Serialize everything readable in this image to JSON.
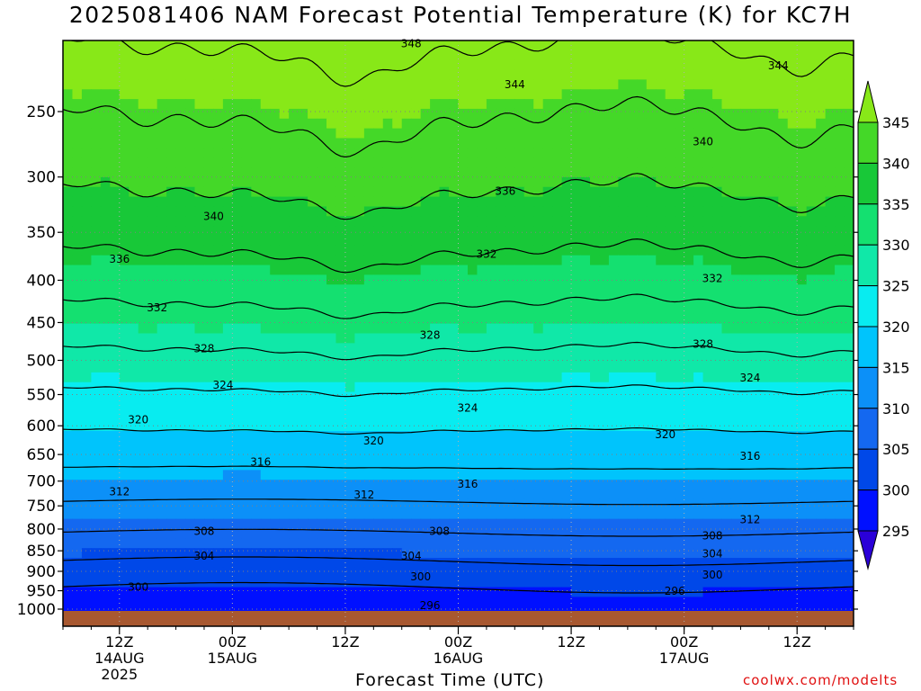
{
  "title": "2025081406 NAM Forecast Potential Temperature (K) for KC7H",
  "xlabel": "Forecast Time (UTC)",
  "credit": "coolwx.com/modelts",
  "colors": {
    "bands": [
      "#2a00d8",
      "#0010ff",
      "#0048e8",
      "#1468f0",
      "#0c90f8",
      "#00c4fc",
      "#08ecf0",
      "#10e8a8",
      "#14e070",
      "#18c838",
      "#44d828",
      "#88e818",
      "#bef000",
      "#ffff00"
    ],
    "ground": "#a85830",
    "grid": "#808080",
    "credit": "#e01010"
  },
  "chart_data": {
    "type": "heatmap",
    "variable": "Potential Temperature (K)",
    "y_axis": {
      "scale": "log-pressure",
      "direction": "inverted",
      "ticks": [
        250,
        300,
        350,
        400,
        450,
        500,
        550,
        600,
        650,
        700,
        750,
        800,
        850,
        900,
        950,
        1000
      ]
    },
    "x_axis": {
      "ticks": [
        {
          "hour": 6,
          "line1": "12Z",
          "line2": "14AUG",
          "line3": "2025"
        },
        {
          "hour": 18,
          "line1": "00Z",
          "line2": "15AUG",
          "line3": ""
        },
        {
          "hour": 30,
          "line1": "12Z",
          "line2": "",
          "line3": ""
        },
        {
          "hour": 42,
          "line1": "00Z",
          "line2": "16AUG",
          "line3": ""
        },
        {
          "hour": 54,
          "line1": "12Z",
          "line2": "",
          "line3": ""
        },
        {
          "hour": 66,
          "line1": "00Z",
          "line2": "17AUG",
          "line3": ""
        },
        {
          "hour": 78,
          "line1": "12Z",
          "line2": "",
          "line3": ""
        }
      ]
    },
    "colorbar": {
      "levels": [
        295,
        300,
        305,
        310,
        315,
        320,
        325,
        330,
        335,
        340,
        345
      ],
      "extend": "both"
    },
    "profile": {
      "pressure": [
        1000,
        950,
        900,
        850,
        800,
        750,
        700,
        650,
        600,
        550,
        500,
        450,
        400,
        350,
        300,
        250,
        200
      ],
      "theta": [
        297.0,
        299.5,
        302.5,
        305.5,
        308.5,
        311.5,
        314.5,
        317.5,
        320.5,
        323.5,
        327.0,
        330.5,
        334.0,
        337.5,
        341.0,
        344.5,
        349.0
      ]
    },
    "contours": [
      296,
      300,
      304,
      308,
      312,
      316,
      320,
      324,
      328,
      332,
      336,
      340,
      344,
      348
    ],
    "contour_labels": [
      {
        "text": "348",
        "hour": 37,
        "p": 207
      },
      {
        "text": "344",
        "hour": 48,
        "p": 232
      },
      {
        "text": "344",
        "hour": 76,
        "p": 220
      },
      {
        "text": "340",
        "hour": 68,
        "p": 272
      },
      {
        "text": "340",
        "hour": 16,
        "p": 335
      },
      {
        "text": "336",
        "hour": 47,
        "p": 312
      },
      {
        "text": "336",
        "hour": 6,
        "p": 377
      },
      {
        "text": "332",
        "hour": 45,
        "p": 372
      },
      {
        "text": "332",
        "hour": 69,
        "p": 398
      },
      {
        "text": "332",
        "hour": 10,
        "p": 432
      },
      {
        "text": "328",
        "hour": 39,
        "p": 466
      },
      {
        "text": "328",
        "hour": 68,
        "p": 478
      },
      {
        "text": "328",
        "hour": 15,
        "p": 484
      },
      {
        "text": "324",
        "hour": 17,
        "p": 536
      },
      {
        "text": "324",
        "hour": 73,
        "p": 525
      },
      {
        "text": "324",
        "hour": 43,
        "p": 571
      },
      {
        "text": "320",
        "hour": 8,
        "p": 590
      },
      {
        "text": "320",
        "hour": 33,
        "p": 626
      },
      {
        "text": "320",
        "hour": 64,
        "p": 615
      },
      {
        "text": "316",
        "hour": 21,
        "p": 664
      },
      {
        "text": "316",
        "hour": 73,
        "p": 653
      },
      {
        "text": "316",
        "hour": 43,
        "p": 706
      },
      {
        "text": "312",
        "hour": 6,
        "p": 721
      },
      {
        "text": "312",
        "hour": 32,
        "p": 727
      },
      {
        "text": "312",
        "hour": 73,
        "p": 779
      },
      {
        "text": "308",
        "hour": 15,
        "p": 805
      },
      {
        "text": "308",
        "hour": 40,
        "p": 805
      },
      {
        "text": "308",
        "hour": 69,
        "p": 815
      },
      {
        "text": "304",
        "hour": 15,
        "p": 862
      },
      {
        "text": "304",
        "hour": 37,
        "p": 862
      },
      {
        "text": "304",
        "hour": 69,
        "p": 857
      },
      {
        "text": "300",
        "hour": 8,
        "p": 940
      },
      {
        "text": "300",
        "hour": 38,
        "p": 914
      },
      {
        "text": "300",
        "hour": 69,
        "p": 909
      },
      {
        "text": "296",
        "hour": 39,
        "p": 990
      },
      {
        "text": "296",
        "hour": 65,
        "p": 951
      }
    ]
  }
}
